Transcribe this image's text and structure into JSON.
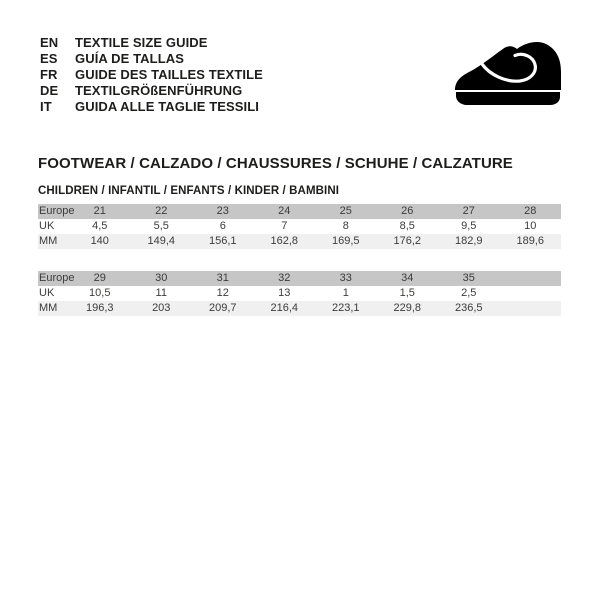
{
  "header": {
    "languages": [
      {
        "code": "EN",
        "label": "TEXTILE SIZE GUIDE"
      },
      {
        "code": "ES",
        "label": "GUÍA DE TALLAS"
      },
      {
        "code": "FR",
        "label": "GUIDE DES TAILLES TEXTILE"
      },
      {
        "code": "DE",
        "label": "TEXTILGRÖßENFÜHRUNG"
      },
      {
        "code": "IT",
        "label": "GUIDA ALLE TAGLIE TESSILI"
      }
    ],
    "logo": {
      "icon": "children-shoe-icon",
      "color": "#000000"
    }
  },
  "section": {
    "title": "FOOTWEAR / CALZADO / CHAUSSURES / SCHUHE / CALZATURE",
    "subtitle": "CHILDREN / INFANTIL / ENFANTS / KINDER / BAMBINI"
  },
  "colors": {
    "header_row_bg": "#c6c6c6",
    "mm_row_bg": "#f0f0f0",
    "table_text": "#3c3c3b",
    "heading_text": "#1d1d1b"
  },
  "tables": [
    {
      "rows": [
        {
          "label": "Europe",
          "values": [
            "21",
            "22",
            "23",
            "24",
            "25",
            "26",
            "27",
            "28"
          ]
        },
        {
          "label": "UK",
          "values": [
            "4,5",
            "5,5",
            "6",
            "7",
            "8",
            "8,5",
            "9,5",
            "10"
          ]
        },
        {
          "label": "MM",
          "values": [
            "140",
            "149,4",
            "156,1",
            "162,8",
            "169,5",
            "176,2",
            "182,9",
            "189,6"
          ]
        }
      ]
    },
    {
      "rows": [
        {
          "label": "Europe",
          "values": [
            "29",
            "30",
            "31",
            "32",
            "33",
            "34",
            "35",
            ""
          ]
        },
        {
          "label": "UK",
          "values": [
            "10,5",
            "11",
            "12",
            "13",
            "1",
            "1,5",
            "2,5",
            ""
          ]
        },
        {
          "label": "MM",
          "values": [
            "196,3",
            "203",
            "209,7",
            "216,4",
            "223,1",
            "229,8",
            "236,5",
            ""
          ]
        }
      ]
    }
  ]
}
